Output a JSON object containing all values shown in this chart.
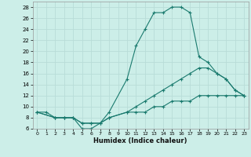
{
  "xlabel": "Humidex (Indice chaleur)",
  "background_color": "#cceee8",
  "grid_color": "#b8ddd8",
  "line_color": "#1a7a6e",
  "xlim": [
    -0.5,
    23.5
  ],
  "ylim": [
    6,
    29
  ],
  "xticks": [
    0,
    1,
    2,
    3,
    4,
    5,
    6,
    7,
    8,
    9,
    10,
    11,
    12,
    13,
    14,
    15,
    16,
    17,
    18,
    19,
    20,
    21,
    22,
    23
  ],
  "yticks": [
    6,
    8,
    10,
    12,
    14,
    16,
    18,
    20,
    22,
    24,
    26,
    28
  ],
  "line1_x": [
    0,
    1,
    2,
    3,
    4,
    5,
    6,
    7,
    8,
    10,
    11,
    12,
    13,
    14,
    15,
    16,
    17,
    18,
    19,
    20,
    21,
    22,
    23
  ],
  "line1_y": [
    9,
    9,
    8,
    8,
    8,
    6,
    6,
    7,
    9,
    15,
    21,
    24,
    27,
    27,
    28,
    28,
    27,
    19,
    18,
    16,
    15,
    13,
    12
  ],
  "line2_x": [
    0,
    2,
    3,
    4,
    5,
    6,
    7,
    8,
    10,
    11,
    12,
    13,
    14,
    15,
    16,
    17,
    18,
    19,
    20,
    21,
    22,
    23
  ],
  "line2_y": [
    9,
    8,
    8,
    8,
    7,
    7,
    7,
    8,
    9,
    10,
    11,
    12,
    13,
    14,
    15,
    16,
    17,
    17,
    16,
    15,
    13,
    12
  ],
  "line3_x": [
    0,
    2,
    3,
    4,
    5,
    6,
    7,
    8,
    10,
    11,
    12,
    13,
    14,
    15,
    16,
    17,
    18,
    19,
    20,
    21,
    22,
    23
  ],
  "line3_y": [
    9,
    8,
    8,
    8,
    7,
    7,
    7,
    8,
    9,
    9,
    9,
    10,
    10,
    11,
    11,
    11,
    12,
    12,
    12,
    12,
    12,
    12
  ]
}
